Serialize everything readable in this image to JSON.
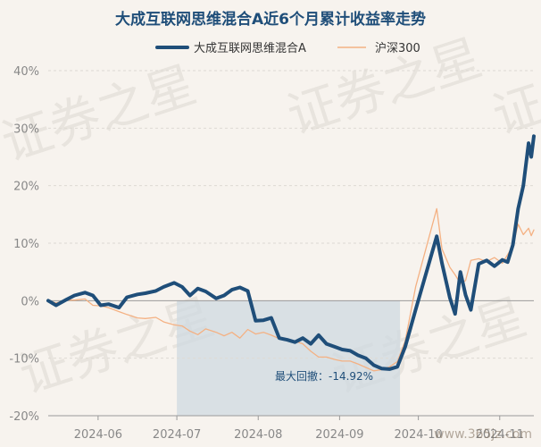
{
  "chart_data": {
    "type": "line",
    "title": "大成互联网思维混合A近6个月累计收益率走势",
    "legend_position": "top-center",
    "x_tick_labels": [
      "2024-06",
      "2024-07",
      "2024-08",
      "2024-09",
      "2024-10",
      "2024-11"
    ],
    "y_tick_labels": [
      "40%",
      "30%",
      "20%",
      "10%",
      "0%",
      "-10%",
      "-20%"
    ],
    "ylim": [
      -20,
      40
    ],
    "y_ticks": [
      40,
      30,
      20,
      10,
      0,
      -10,
      -20
    ],
    "grid": "horizontal",
    "x_start": "2024-05-13",
    "x_end": "2024-11-14",
    "x_tick_dates": [
      "2024-06-01",
      "2024-07-01",
      "2024-08-01",
      "2024-09-01",
      "2024-10-01",
      "2024-11-01"
    ],
    "series": [
      {
        "name": "大成互联网思维混合A",
        "color": "#1f4e79",
        "line_width": "thick",
        "points": [
          [
            "2024-05-13",
            0.0
          ],
          [
            "2024-05-16",
            -0.8
          ],
          [
            "2024-05-20",
            0.2
          ],
          [
            "2024-05-23",
            0.9
          ],
          [
            "2024-05-27",
            1.4
          ],
          [
            "2024-05-30",
            0.9
          ],
          [
            "2024-06-02",
            -0.8
          ],
          [
            "2024-06-05",
            -0.6
          ],
          [
            "2024-06-09",
            -1.2
          ],
          [
            "2024-06-12",
            0.6
          ],
          [
            "2024-06-16",
            1.1
          ],
          [
            "2024-06-19",
            1.3
          ],
          [
            "2024-06-23",
            1.7
          ],
          [
            "2024-06-26",
            2.4
          ],
          [
            "2024-06-30",
            3.1
          ],
          [
            "2024-07-03",
            2.4
          ],
          [
            "2024-07-06",
            0.9
          ],
          [
            "2024-07-09",
            2.1
          ],
          [
            "2024-07-12",
            1.6
          ],
          [
            "2024-07-16",
            0.4
          ],
          [
            "2024-07-19",
            0.9
          ],
          [
            "2024-07-22",
            1.9
          ],
          [
            "2024-07-25",
            2.3
          ],
          [
            "2024-07-28",
            1.7
          ],
          [
            "2024-07-31",
            -3.5
          ],
          [
            "2024-08-03",
            -3.4
          ],
          [
            "2024-08-06",
            -3.0
          ],
          [
            "2024-08-09",
            -6.5
          ],
          [
            "2024-08-12",
            -6.8
          ],
          [
            "2024-08-15",
            -7.2
          ],
          [
            "2024-08-18",
            -6.5
          ],
          [
            "2024-08-21",
            -7.5
          ],
          [
            "2024-08-24",
            -6.0
          ],
          [
            "2024-08-27",
            -7.5
          ],
          [
            "2024-08-30",
            -8.0
          ],
          [
            "2024-09-02",
            -8.5
          ],
          [
            "2024-09-05",
            -8.7
          ],
          [
            "2024-09-08",
            -9.5
          ],
          [
            "2024-09-11",
            -10.0
          ],
          [
            "2024-09-14",
            -11.2
          ],
          [
            "2024-09-17",
            -11.8
          ],
          [
            "2024-09-20",
            -11.9
          ],
          [
            "2024-09-23",
            -11.5
          ],
          [
            "2024-09-26",
            -8.0
          ],
          [
            "2024-09-30",
            -1.5
          ],
          [
            "2024-10-08",
            11.2
          ],
          [
            "2024-10-10",
            6.5
          ],
          [
            "2024-10-13",
            0.5
          ],
          [
            "2024-10-15",
            -2.3
          ],
          [
            "2024-10-17",
            5.0
          ],
          [
            "2024-10-19",
            1.0
          ],
          [
            "2024-10-21",
            -1.6
          ],
          [
            "2024-10-24",
            6.4
          ],
          [
            "2024-10-27",
            7.0
          ],
          [
            "2024-10-30",
            6.0
          ],
          [
            "2024-11-02",
            7.1
          ],
          [
            "2024-11-04",
            6.7
          ],
          [
            "2024-11-06",
            9.7
          ],
          [
            "2024-11-08",
            16.0
          ],
          [
            "2024-11-10",
            20.0
          ],
          [
            "2024-11-12",
            27.4
          ],
          [
            "2024-11-13",
            25.0
          ],
          [
            "2024-11-14",
            28.6
          ]
        ]
      },
      {
        "name": "沪深300",
        "color": "#f4b183",
        "line_width": "thin",
        "points": [
          [
            "2024-05-13",
            0.0
          ],
          [
            "2024-05-16",
            -0.4
          ],
          [
            "2024-05-20",
            0.1
          ],
          [
            "2024-05-23",
            0.1
          ],
          [
            "2024-05-27",
            0.3
          ],
          [
            "2024-05-30",
            -0.8
          ],
          [
            "2024-06-02",
            -0.9
          ],
          [
            "2024-06-05",
            -1.2
          ],
          [
            "2024-06-09",
            -1.9
          ],
          [
            "2024-06-12",
            -2.4
          ],
          [
            "2024-06-16",
            -3.0
          ],
          [
            "2024-06-19",
            -3.1
          ],
          [
            "2024-06-23",
            -2.9
          ],
          [
            "2024-06-26",
            -3.7
          ],
          [
            "2024-06-30",
            -4.2
          ],
          [
            "2024-07-03",
            -4.4
          ],
          [
            "2024-07-06",
            -5.3
          ],
          [
            "2024-07-09",
            -5.9
          ],
          [
            "2024-07-12",
            -4.9
          ],
          [
            "2024-07-16",
            -5.5
          ],
          [
            "2024-07-19",
            -6.1
          ],
          [
            "2024-07-22",
            -5.5
          ],
          [
            "2024-07-25",
            -6.5
          ],
          [
            "2024-07-28",
            -5.0
          ],
          [
            "2024-07-31",
            -5.8
          ],
          [
            "2024-08-03",
            -5.5
          ],
          [
            "2024-08-06",
            -6.0
          ],
          [
            "2024-08-09",
            -6.6
          ],
          [
            "2024-08-12",
            -6.7
          ],
          [
            "2024-08-15",
            -7.0
          ],
          [
            "2024-08-18",
            -7.5
          ],
          [
            "2024-08-21",
            -8.8
          ],
          [
            "2024-08-24",
            -9.8
          ],
          [
            "2024-08-27",
            -9.8
          ],
          [
            "2024-08-30",
            -10.2
          ],
          [
            "2024-09-02",
            -10.5
          ],
          [
            "2024-09-05",
            -10.5
          ],
          [
            "2024-09-08",
            -11.0
          ],
          [
            "2024-09-11",
            -11.6
          ],
          [
            "2024-09-14",
            -12.2
          ],
          [
            "2024-09-17",
            -12.0
          ],
          [
            "2024-09-20",
            -11.5
          ],
          [
            "2024-09-23",
            -10.6
          ],
          [
            "2024-09-26",
            -7.0
          ],
          [
            "2024-09-30",
            2.5
          ],
          [
            "2024-10-08",
            16.0
          ],
          [
            "2024-10-10",
            9.0
          ],
          [
            "2024-10-13",
            5.8
          ],
          [
            "2024-10-15",
            4.5
          ],
          [
            "2024-10-17",
            3.0
          ],
          [
            "2024-10-19",
            3.5
          ],
          [
            "2024-10-21",
            7.0
          ],
          [
            "2024-10-24",
            7.3
          ],
          [
            "2024-10-27",
            6.8
          ],
          [
            "2024-10-30",
            7.5
          ],
          [
            "2024-11-02",
            6.5
          ],
          [
            "2024-11-04",
            8.0
          ],
          [
            "2024-11-06",
            9.5
          ],
          [
            "2024-11-08",
            13.3
          ],
          [
            "2024-11-10",
            11.5
          ],
          [
            "2024-11-12",
            12.6
          ],
          [
            "2024-11-13",
            11.3
          ],
          [
            "2024-11-14",
            12.3
          ]
        ]
      }
    ],
    "max_drawdown": {
      "label": "最大回撤：-14.92%",
      "start": "2024-07-01",
      "end": "2024-09-24"
    }
  },
  "watermark": {
    "repeat_text": "证券之星",
    "site": "www.365jz.com"
  }
}
